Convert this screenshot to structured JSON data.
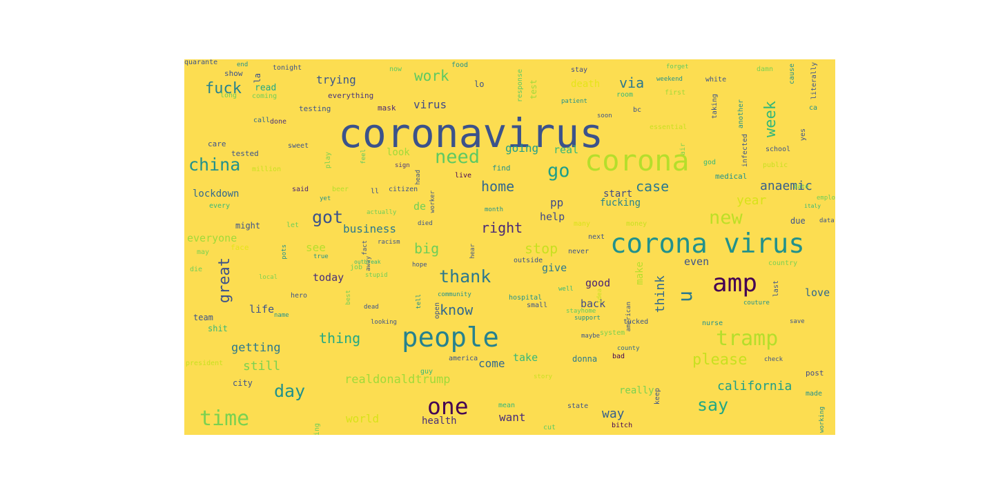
{
  "cloud": {
    "background": "#fcdd51",
    "words": [
      {
        "text": "coronavirus",
        "color": "#3b528b"
      },
      {
        "text": "corona",
        "color": "#b5de2b"
      },
      {
        "text": "corona virus",
        "color": "#21918c"
      },
      {
        "text": "people",
        "color": "#26828e"
      },
      {
        "text": "amp",
        "color": "#440154"
      },
      {
        "text": "one",
        "color": "#440154"
      },
      {
        "text": "time",
        "color": "#7ad151"
      },
      {
        "text": "tramp",
        "color": "#b5de2b"
      },
      {
        "text": "need",
        "color": "#5ec962"
      },
      {
        "text": "go",
        "color": "#1f9e89"
      },
      {
        "text": "china",
        "color": "#21918c"
      },
      {
        "text": "thank",
        "color": "#2a788e"
      },
      {
        "text": "got",
        "color": "#3b528b"
      },
      {
        "text": "day",
        "color": "#21918c"
      },
      {
        "text": "new",
        "color": "#bddf26"
      },
      {
        "text": "say",
        "color": "#22a884"
      },
      {
        "text": "u",
        "color": "#2a788e"
      },
      {
        "text": "fuck",
        "color": "#26828e"
      },
      {
        "text": "work",
        "color": "#5ec962"
      },
      {
        "text": "great",
        "color": "#3b528b"
      },
      {
        "text": "home",
        "color": "#31688e"
      },
      {
        "text": "case",
        "color": "#2a788e"
      },
      {
        "text": "know",
        "color": "#31688e"
      },
      {
        "text": "please",
        "color": "#c8e020"
      },
      {
        "text": "week",
        "color": "#35b779"
      },
      {
        "text": "right",
        "color": "#482878"
      },
      {
        "text": "via",
        "color": "#2a788e"
      },
      {
        "text": "thing",
        "color": "#22a884"
      },
      {
        "text": "california",
        "color": "#1f9e89"
      },
      {
        "text": "think",
        "color": "#31688e"
      },
      {
        "text": "anaemic",
        "color": "#355f8d"
      },
      {
        "text": "big",
        "color": "#6ece58"
      },
      {
        "text": "stop",
        "color": "#c8e020"
      },
      {
        "text": "way",
        "color": "#355f8d"
      },
      {
        "text": "year",
        "color": "#d8e219"
      },
      {
        "text": "realdonaldtrump",
        "color": "#a0da39"
      },
      {
        "text": "trying",
        "color": "#39568c"
      },
      {
        "text": "getting",
        "color": "#2a788e"
      },
      {
        "text": "still",
        "color": "#7ad151"
      },
      {
        "text": "want",
        "color": "#472c7a"
      },
      {
        "text": "virus",
        "color": "#3e4989"
      },
      {
        "text": "going",
        "color": "#1f9e89"
      },
      {
        "text": "business",
        "color": "#2a788e"
      },
      {
        "text": "everyone",
        "color": "#a0da39"
      },
      {
        "text": "lockdown",
        "color": "#31688e"
      },
      {
        "text": "pp",
        "color": "#3e4989"
      },
      {
        "text": "today",
        "color": "#472d7b"
      },
      {
        "text": "see",
        "color": "#b5de2b"
      },
      {
        "text": "de",
        "color": "#6ece58"
      },
      {
        "text": "good",
        "color": "#482173"
      },
      {
        "text": "come",
        "color": "#31688e"
      },
      {
        "text": "take",
        "color": "#35b779"
      },
      {
        "text": "world",
        "color": "#d8e219"
      },
      {
        "text": "even",
        "color": "#3b528b"
      },
      {
        "text": "give",
        "color": "#2a788e"
      },
      {
        "text": "help",
        "color": "#3e4989"
      },
      {
        "text": "look",
        "color": "#a0da39"
      },
      {
        "text": "real",
        "color": "#35b779"
      },
      {
        "text": "fucking",
        "color": "#26828e"
      },
      {
        "text": "start",
        "color": "#3e4989"
      },
      {
        "text": "make",
        "color": "#b5de2b"
      },
      {
        "text": "love",
        "color": "#31688e"
      },
      {
        "text": "life",
        "color": "#3b528b"
      },
      {
        "text": "back",
        "color": "#3e4989"
      },
      {
        "text": "health",
        "color": "#472d7b"
      },
      {
        "text": "really",
        "color": "#7ad151"
      },
      {
        "text": "read",
        "color": "#22a884"
      },
      {
        "text": "death",
        "color": "#e5e419"
      },
      {
        "text": "lo",
        "color": "#3b528b"
      },
      {
        "text": "test",
        "color": "#a0da39"
      },
      {
        "text": "la",
        "color": "#3b528b"
      },
      {
        "text": "everything",
        "color": "#46337e"
      },
      {
        "text": "testing",
        "color": "#3b528b"
      },
      {
        "text": "mask",
        "color": "#482475"
      },
      {
        "text": "donna",
        "color": "#2a788e"
      },
      {
        "text": "city",
        "color": "#3b528b"
      },
      {
        "text": "post",
        "color": "#3e4989"
      },
      {
        "text": "team",
        "color": "#3b528b"
      },
      {
        "text": "shit",
        "color": "#35b779"
      },
      {
        "text": "due",
        "color": "#3b528b"
      },
      {
        "text": "might",
        "color": "#3b528b"
      },
      {
        "text": "find",
        "color": "#21918c"
      },
      {
        "text": "ll",
        "color": "#3b528b"
      },
      {
        "text": "said",
        "color": "#482173"
      },
      {
        "text": "citizen",
        "color": "#3b528b"
      },
      {
        "text": "live",
        "color": "#440154"
      },
      {
        "text": "sign",
        "color": "#46337e"
      },
      {
        "text": "tested",
        "color": "#3b528b"
      },
      {
        "text": "care",
        "color": "#3b528b"
      },
      {
        "text": "sweet",
        "color": "#3b528b"
      },
      {
        "text": "call",
        "color": "#31688e"
      },
      {
        "text": "done",
        "color": "#472d7b"
      },
      {
        "text": "show",
        "color": "#3b528b"
      },
      {
        "text": "tonight",
        "color": "#3b528b"
      },
      {
        "text": "now",
        "color": "#5ec962"
      },
      {
        "text": "food",
        "color": "#21918c"
      },
      {
        "text": "stay",
        "color": "#3e4989"
      },
      {
        "text": "forget",
        "color": "#5ec962"
      },
      {
        "text": "white",
        "color": "#3b528b"
      },
      {
        "text": "damn",
        "color": "#7ad151"
      },
      {
        "text": "weekend",
        "color": "#21918c"
      },
      {
        "text": "room",
        "color": "#35b779"
      },
      {
        "text": "first",
        "color": "#a0da39"
      },
      {
        "text": "patient",
        "color": "#21918c"
      },
      {
        "text": "soon",
        "color": "#3b528b"
      },
      {
        "text": "bc",
        "color": "#3b528b"
      },
      {
        "text": "essential",
        "color": "#c8e020"
      },
      {
        "text": "air",
        "color": "#7ad151"
      },
      {
        "text": "god",
        "color": "#35b779"
      },
      {
        "text": "medical",
        "color": "#21918c"
      },
      {
        "text": "public",
        "color": "#c8e020"
      },
      {
        "text": "school",
        "color": "#3b528b"
      },
      {
        "text": "yes",
        "color": "#3b528b"
      },
      {
        "text": "ca",
        "color": "#21918c"
      },
      {
        "text": "date",
        "color": "#5ec962"
      },
      {
        "text": "employee",
        "color": "#6ece58"
      },
      {
        "text": "italy",
        "color": "#35b779"
      },
      {
        "text": "data",
        "color": "#3b528b"
      },
      {
        "text": "money",
        "color": "#c8e020"
      },
      {
        "text": "next",
        "color": "#3b528b"
      },
      {
        "text": "many",
        "color": "#d8e219"
      },
      {
        "text": "month",
        "color": "#21918c"
      },
      {
        "text": "died",
        "color": "#3b528b"
      },
      {
        "text": "actually",
        "color": "#6ece58"
      },
      {
        "text": "beer",
        "color": "#b5de2b"
      },
      {
        "text": "yet",
        "color": "#21918c"
      },
      {
        "text": "every",
        "color": "#35b779"
      },
      {
        "text": "let",
        "color": "#6ece58"
      },
      {
        "text": "million",
        "color": "#c8e020"
      },
      {
        "text": "may",
        "color": "#7ad151"
      },
      {
        "text": "face",
        "color": "#e5e419"
      },
      {
        "text": "racism",
        "color": "#3b528b"
      },
      {
        "text": "away",
        "color": "#3b528b"
      },
      {
        "text": "true",
        "color": "#21918c"
      },
      {
        "text": "job",
        "color": "#6ece58"
      },
      {
        "text": "outbreak",
        "color": "#35b779"
      },
      {
        "text": "stupid",
        "color": "#6ece58"
      },
      {
        "text": "hope",
        "color": "#3b528b"
      },
      {
        "text": "outside",
        "color": "#3b528b"
      },
      {
        "text": "never",
        "color": "#3b528b"
      },
      {
        "text": "country",
        "color": "#7ad151"
      },
      {
        "text": "couture",
        "color": "#21918c"
      },
      {
        "text": "die",
        "color": "#6ece58"
      },
      {
        "text": "local",
        "color": "#7ad151"
      },
      {
        "text": "hero",
        "color": "#3b528b"
      },
      {
        "text": "name",
        "color": "#21918c"
      },
      {
        "text": "dead",
        "color": "#3b528b"
      },
      {
        "text": "looking",
        "color": "#3b528b"
      },
      {
        "text": "community",
        "color": "#21918c"
      },
      {
        "text": "hospital",
        "color": "#21918c"
      },
      {
        "text": "small",
        "color": "#3b528b"
      },
      {
        "text": "well",
        "color": "#35b779"
      },
      {
        "text": "stayhome",
        "color": "#5ec962"
      },
      {
        "text": "support",
        "color": "#21918c"
      },
      {
        "text": "american",
        "color": "#3b528b"
      },
      {
        "text": "tucked",
        "color": "#3b528b"
      },
      {
        "text": "nurse",
        "color": "#21918c"
      },
      {
        "text": "save",
        "color": "#3b528b"
      },
      {
        "text": "guy",
        "color": "#35b779"
      },
      {
        "text": "system",
        "color": "#7ad151"
      },
      {
        "text": "maybe",
        "color": "#3b528b"
      },
      {
        "text": "county",
        "color": "#31688e"
      },
      {
        "text": "america",
        "color": "#3b528b"
      },
      {
        "text": "bad",
        "color": "#440154"
      },
      {
        "text": "check",
        "color": "#3b528b"
      },
      {
        "text": "story",
        "color": "#c8e020"
      },
      {
        "text": "mean",
        "color": "#35b779"
      },
      {
        "text": "state",
        "color": "#3b528b"
      },
      {
        "text": "working",
        "color": "#21918c"
      },
      {
        "text": "made",
        "color": "#21918c"
      },
      {
        "text": "cut",
        "color": "#5ec962"
      },
      {
        "text": "bitch",
        "color": "#440154"
      },
      {
        "text": "nothing",
        "color": "#6ece58"
      },
      {
        "text": "president",
        "color": "#c8e020"
      },
      {
        "text": "long",
        "color": "#6ece58"
      },
      {
        "text": "coming",
        "color": "#6ece58"
      },
      {
        "text": "end",
        "color": "#21918c"
      },
      {
        "text": "play",
        "color": "#7ad151"
      },
      {
        "text": "feel",
        "color": "#5ec962"
      },
      {
        "text": "head",
        "color": "#3b528b"
      },
      {
        "text": "worker",
        "color": "#3b528b"
      },
      {
        "text": "response",
        "color": "#5ec962"
      },
      {
        "text": "taking",
        "color": "#3b528b"
      },
      {
        "text": "another",
        "color": "#21918c"
      },
      {
        "text": "infected",
        "color": "#3b528b"
      },
      {
        "text": "cause",
        "color": "#21918c"
      },
      {
        "text": "literally",
        "color": "#3b528b"
      },
      {
        "text": "pots",
        "color": "#21918c"
      },
      {
        "text": "fact",
        "color": "#3b528b"
      },
      {
        "text": "hear",
        "color": "#3b528b"
      },
      {
        "text": "best",
        "color": "#6ece58"
      },
      {
        "text": "tell",
        "color": "#21918c"
      },
      {
        "text": "open",
        "color": "#3b528b"
      },
      {
        "text": "idea",
        "color": "#c8e020"
      },
      {
        "text": "last",
        "color": "#3b528b"
      },
      {
        "text": "keep",
        "color": "#3b528b"
      },
      {
        "text": "quarante",
        "color": "#3b528b"
      }
    ]
  }
}
